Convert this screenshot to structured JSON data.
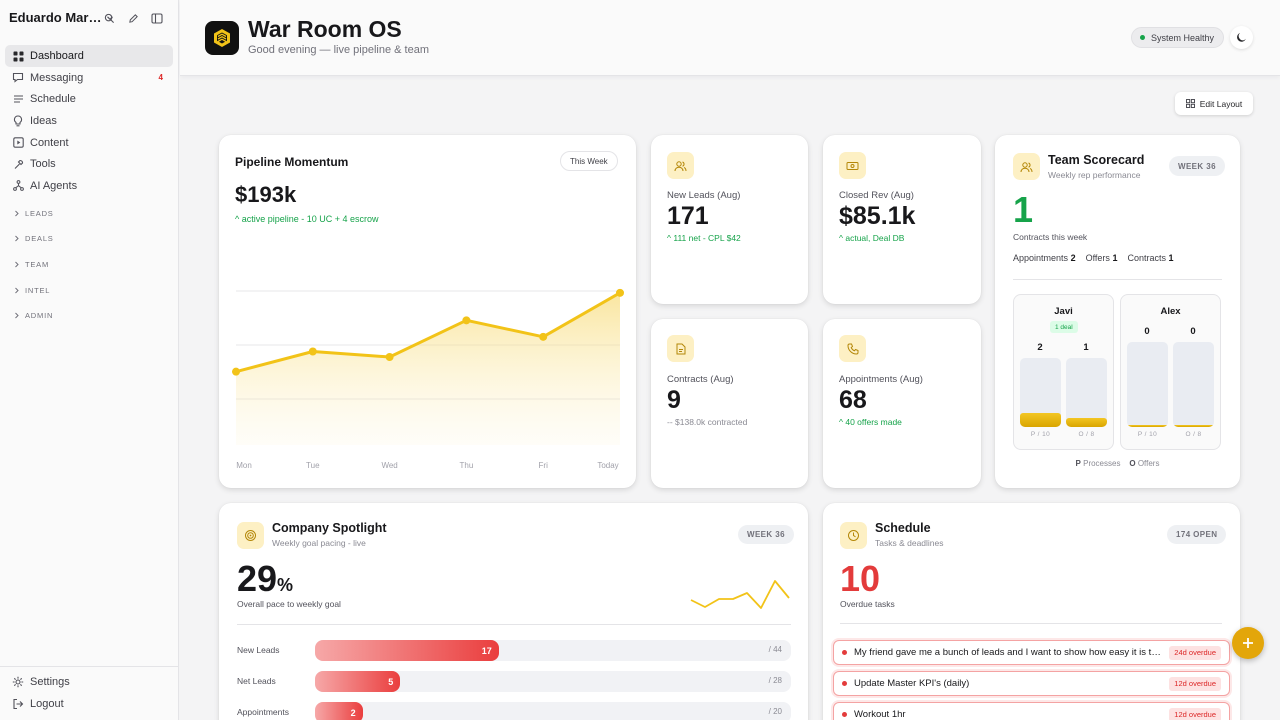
{
  "workspace": {
    "name": "Eduardo Mar…"
  },
  "sidebar": {
    "items": [
      {
        "label": "Dashboard",
        "icon": "grid-icon",
        "active": true
      },
      {
        "label": "Messaging",
        "icon": "message-icon",
        "badge": "4"
      },
      {
        "label": "Schedule",
        "icon": "list-icon"
      },
      {
        "label": "Ideas",
        "icon": "lightbulb-icon"
      },
      {
        "label": "Content",
        "icon": "play-square-icon"
      },
      {
        "label": "Tools",
        "icon": "wrench-icon"
      },
      {
        "label": "AI Agents",
        "icon": "network-icon"
      }
    ],
    "sections": [
      "LEADS",
      "DEALS",
      "TEAM",
      "INTEL",
      "ADMIN"
    ],
    "bottom": [
      {
        "label": "Settings",
        "icon": "gear-icon"
      },
      {
        "label": "Logout",
        "icon": "logout-icon"
      }
    ]
  },
  "header": {
    "title": "War Room OS",
    "subtitle": "Good evening — live pipeline & team",
    "status": "System Healthy"
  },
  "toolbar": {
    "edit_layout": "Edit Layout"
  },
  "pipeline": {
    "title": "Pipeline Momentum",
    "range": "This Week",
    "value": "$193k",
    "delta": "active pipeline - 10 UC + 4 escrow"
  },
  "stats": {
    "new_leads": {
      "label": "New Leads (Aug)",
      "value": "171",
      "delta": "111 net - CPL $42"
    },
    "closed_rev": {
      "label": "Closed Rev (Aug)",
      "value": "$85.1k",
      "delta": "actual, Deal DB"
    },
    "contracts": {
      "label": "Contracts (Aug)",
      "value": "9",
      "delta": "-- $138.0k contracted"
    },
    "appointments": {
      "label": "Appointments (Aug)",
      "value": "68",
      "delta": "40 offers made"
    }
  },
  "team": {
    "title": "Team Scorecard",
    "subtitle": "Weekly rep performance",
    "week": "WEEK 36",
    "contracts": "1",
    "contracts_label": "Contracts this week",
    "counts": {
      "appointments_label": "Appointments",
      "appointments": "2",
      "offers_label": "Offers",
      "offers": "1",
      "contracts_label": "Contracts",
      "contracts": "1"
    },
    "reps": [
      {
        "name": "Javi",
        "deal": "1 deal",
        "processes": "2",
        "offers": "1",
        "p_tick": "P / 10",
        "o_tick": "O / 8",
        "p_frac": 0.2,
        "o_frac": 0.125
      },
      {
        "name": "Alex",
        "processes": "0",
        "offers": "0",
        "p_tick": "P / 10",
        "o_tick": "O / 8",
        "p_frac": 0,
        "o_frac": 0
      }
    ],
    "legend": {
      "p_key": "P",
      "p_label": "Processes",
      "o_key": "O",
      "o_label": "Offers"
    }
  },
  "spotlight": {
    "title": "Company Spotlight",
    "subtitle": "Weekly goal pacing - live",
    "week": "WEEK 36",
    "pct": "29",
    "pct_sign": "%",
    "pct_label": "Overall pace to weekly goal",
    "goals": [
      {
        "label": "New Leads",
        "value": "17",
        "max": "/ 44",
        "frac": 0.386
      },
      {
        "label": "Net Leads",
        "value": "5",
        "max": "/ 28",
        "frac": 0.179
      },
      {
        "label": "Appointments",
        "value": "2",
        "max": "/ 20",
        "frac": 0.1
      }
    ]
  },
  "schedule": {
    "title": "Schedule",
    "subtitle": "Tasks & deadlines",
    "open": "174 OPEN",
    "overdue": "10",
    "overdue_label": "Overdue tasks",
    "tasks": [
      {
        "text": "My friend gave me a bunch of leads and I want to show how easy it is to …",
        "badge": "24d overdue"
      },
      {
        "text": "Update Master KPI's (daily)",
        "badge": "12d overdue"
      },
      {
        "text": "Workout 1hr",
        "badge": "12d overdue"
      }
    ]
  },
  "colors": {
    "accent": "#f2c318",
    "positive": "#16a34a",
    "danger": "#e33b3b"
  },
  "chart_data": {
    "type": "area",
    "title": "Pipeline Momentum",
    "categories": [
      "Mon",
      "Tue",
      "Wed",
      "Thu",
      "Fri",
      "Today"
    ],
    "values": [
      150,
      161,
      158,
      178,
      169,
      193
    ],
    "ylim": [
      110,
      200
    ],
    "grid": true
  }
}
